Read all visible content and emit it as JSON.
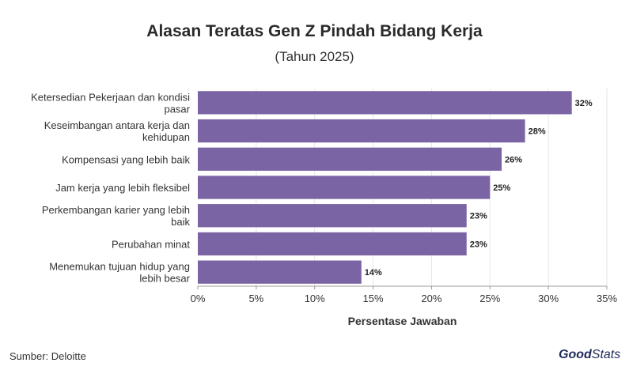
{
  "header": {
    "title": "Alasan Teratas Gen Z Pindah Bidang Kerja",
    "subtitle": "(Tahun 2025)"
  },
  "footer": {
    "source": "Sumber: Deloitte",
    "logo_good": "Good",
    "logo_stats": "Stats"
  },
  "chart_data": {
    "type": "bar",
    "orientation": "horizontal",
    "categories": [
      [
        "Ketersedian Pekerjaan dan kondisi",
        "pasar"
      ],
      [
        "Keseimbangan antara kerja dan",
        "kehidupan"
      ],
      [
        "Kompensasi yang lebih baik"
      ],
      [
        "Jam kerja yang lebih fleksibel"
      ],
      [
        "Perkembangan karier yang lebih",
        "baik"
      ],
      [
        "Perubahan minat"
      ],
      [
        "Menemukan tujuan hidup yang",
        "lebih besar"
      ]
    ],
    "values": [
      32,
      28,
      26,
      25,
      23,
      23,
      14
    ],
    "value_labels": [
      "32%",
      "28%",
      "26%",
      "25%",
      "23%",
      "23%",
      "14%"
    ],
    "xlabel": "Persentase Jawaban",
    "xlim": [
      0,
      35
    ],
    "xticks": [
      0,
      5,
      10,
      15,
      20,
      25,
      30,
      35
    ],
    "xtick_labels": [
      "0%",
      "5%",
      "10%",
      "15%",
      "20%",
      "25%",
      "30%",
      "35%"
    ],
    "grid": "vertical",
    "bar_color": "#7b64a4",
    "grid_color": "#e6e6e6"
  }
}
